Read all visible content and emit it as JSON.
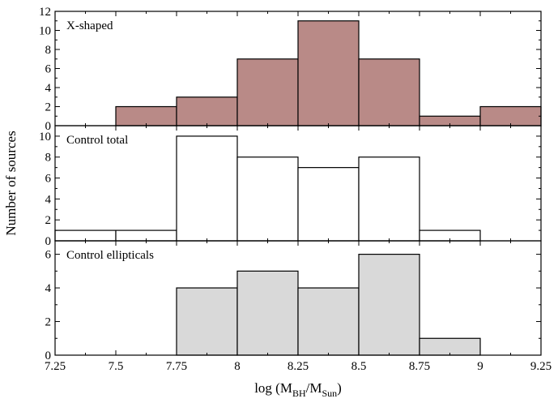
{
  "chart_data": {
    "type": "bar",
    "ylabel": "Number of sources",
    "xlabel_parts": {
      "prefix": "log (M",
      "sub1": "BH",
      "mid": "/M",
      "sub2": "Sun",
      "suffix": ")"
    },
    "xlim": [
      7.25,
      9.25
    ],
    "x_ticks": [
      7.25,
      7.5,
      7.75,
      8,
      8.25,
      8.5,
      8.75,
      9,
      9.25
    ],
    "x_tick_labels": [
      "7.25",
      "7.5",
      "7.75",
      "8",
      "8.25",
      "8.5",
      "8.75",
      "9",
      "9.25"
    ],
    "bin_edges": [
      7.25,
      7.5,
      7.75,
      8.0,
      8.25,
      8.5,
      8.75,
      9.0,
      9.25
    ],
    "panels": [
      {
        "label": "X-shaped",
        "values": [
          0,
          2,
          3,
          7,
          11,
          7,
          1,
          2
        ],
        "color": "#b98a87",
        "ylim": [
          0,
          12
        ],
        "y_ticks": [
          0,
          2,
          4,
          6,
          8,
          10,
          12
        ],
        "y_tick_labels": [
          "0",
          "2",
          "4",
          "6",
          "8",
          "10",
          "12"
        ]
      },
      {
        "label": "Control total",
        "values": [
          1,
          1,
          10,
          8,
          7,
          8,
          1,
          0
        ],
        "color": "#ffffff",
        "ylim": [
          0,
          11
        ],
        "y_ticks": [
          0,
          2,
          4,
          6,
          8,
          10
        ],
        "y_tick_labels": [
          "0",
          "2",
          "4",
          "6",
          "8",
          "10"
        ]
      },
      {
        "label": "Control ellipticals",
        "values": [
          0,
          0,
          4,
          5,
          4,
          6,
          1,
          0
        ],
        "color": "#d9d9d9",
        "ylim": [
          0,
          6.8
        ],
        "y_ticks": [
          0,
          2,
          4,
          6
        ],
        "y_tick_labels": [
          "0",
          "2",
          "4",
          "6"
        ]
      }
    ]
  }
}
